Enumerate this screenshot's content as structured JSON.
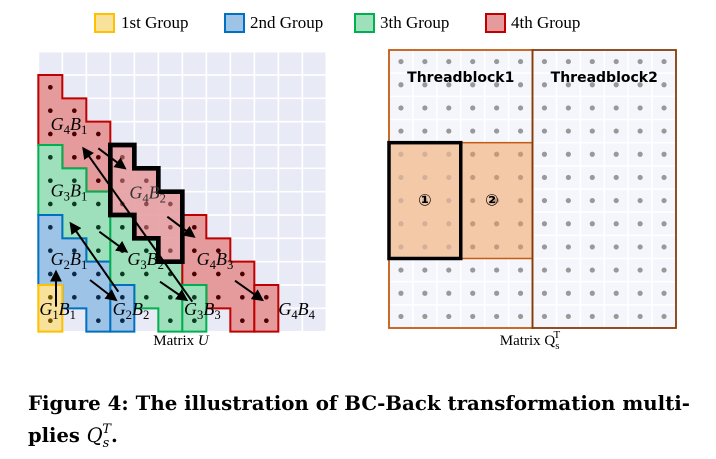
{
  "legend": [
    {
      "label": "1st Group",
      "fill": "#f8e19a",
      "stroke": "#ffc000"
    },
    {
      "label": "2nd Group",
      "fill": "#9dc3e6",
      "stroke": "#0070c0"
    },
    {
      "label": "3th Group",
      "fill": "#9fe0bc",
      "stroke": "#00b050"
    },
    {
      "label": "4th Group",
      "fill": "#e59a9c",
      "stroke": "#c00000"
    }
  ],
  "left_matrix": {
    "caption_prefix": "Matrix ",
    "caption_var": "U",
    "blocks": [
      {
        "parts": [
          "G",
          "4",
          "B",
          "1"
        ],
        "group": 4
      },
      {
        "parts": [
          "G",
          "3",
          "B",
          "1"
        ],
        "group": 3
      },
      {
        "parts": [
          "G",
          "2",
          "B",
          "1"
        ],
        "group": 2
      },
      {
        "parts": [
          "G",
          "1",
          "B",
          "1"
        ],
        "group": 1
      },
      {
        "parts": [
          "G",
          "4",
          "B",
          "2"
        ],
        "group": 4,
        "highlighted": true
      },
      {
        "parts": [
          "G",
          "3",
          "B",
          "2"
        ],
        "group": 3
      },
      {
        "parts": [
          "G",
          "2",
          "B",
          "2"
        ],
        "group": 2
      },
      {
        "parts": [
          "G",
          "4",
          "B",
          "3"
        ],
        "group": 4
      },
      {
        "parts": [
          "G",
          "3",
          "B",
          "3"
        ],
        "group": 3
      },
      {
        "parts": [
          "G",
          "4",
          "B",
          "4"
        ],
        "group": 4
      }
    ]
  },
  "right_matrix": {
    "caption_prefix": "Matrix Q",
    "caption_sub": "s",
    "caption_sup": "T",
    "threadblock1": "Threadblock1",
    "threadblock2": "Threadblock2",
    "step1": "①",
    "step2": "②",
    "region_fill": "#f3c9a8",
    "border_color": "#c55a11"
  },
  "caption": {
    "line1": "Figure 4: The illustration of BC-Back transformation multi-",
    "line2_prefix": "plies ",
    "line2_var": "Q",
    "line2_sub": "s",
    "line2_sup": "T",
    "line2_suffix": "."
  }
}
